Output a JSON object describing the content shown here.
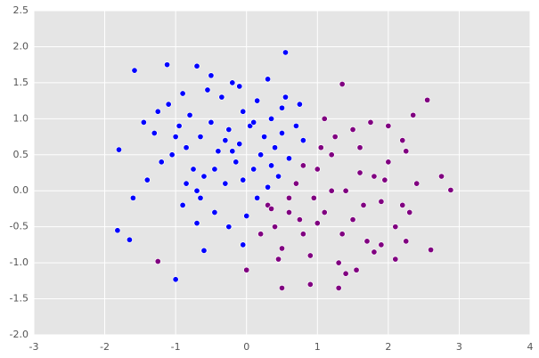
{
  "chart_data": {
    "type": "scatter",
    "xlim": [
      -3,
      4
    ],
    "xticks": [
      -3,
      -2,
      -1,
      0,
      1,
      2,
      3,
      4
    ],
    "ylim": [
      -2,
      2.5
    ],
    "yticks": [
      {
        "value": -2,
        "label": "-2.0"
      },
      -1.5,
      {
        "value": -1,
        "label": "-1.0"
      },
      -0.5,
      {
        "value": 0,
        "label": "0.0"
      },
      0.5,
      {
        "value": 1,
        "label": "1.0"
      },
      1.5,
      {
        "value": 2,
        "label": "2.0"
      },
      2.5
    ],
    "grid": true,
    "series": [
      {
        "color": "#0000ff",
        "x": [
          -1.8,
          -1.82,
          -1.65,
          -1.58,
          -1.12,
          -1.0,
          -0.7,
          0.55,
          -0.6,
          -0.05,
          -1.6,
          -1.4,
          -1.3,
          -1.2,
          -1.1,
          -0.95,
          -0.9,
          -0.85,
          -0.8,
          -0.75,
          -0.7,
          -0.65,
          -0.6,
          -0.55,
          -0.5,
          -0.45,
          -0.4,
          -0.35,
          -0.3,
          -0.25,
          -0.2,
          -0.15,
          -0.1,
          -0.05,
          0.0,
          0.05,
          0.1,
          0.15,
          0.2,
          0.25,
          0.3,
          0.35,
          0.4,
          0.45,
          0.5,
          0.6,
          0.7,
          0.8,
          -1.45,
          -1.25,
          -1.05,
          -0.85,
          -0.65,
          -0.45,
          -0.25,
          -0.05,
          0.15,
          0.35,
          0.55,
          0.75,
          -0.9,
          -0.5,
          -0.1,
          0.3,
          -0.7,
          -0.3,
          0.1,
          0.5,
          -1.0,
          -0.2
        ],
        "values": [
          0.57,
          -0.55,
          -0.68,
          1.67,
          1.75,
          -1.23,
          1.73,
          1.92,
          -0.83,
          -0.75,
          -0.1,
          0.15,
          0.8,
          0.4,
          1.2,
          0.9,
          -0.2,
          0.6,
          1.05,
          0.3,
          -0.45,
          0.75,
          0.2,
          1.4,
          0.95,
          -0.3,
          0.55,
          1.3,
          0.1,
          0.85,
          1.5,
          0.4,
          0.65,
          1.1,
          -0.35,
          0.9,
          0.3,
          1.25,
          0.5,
          0.75,
          0.05,
          1.0,
          0.6,
          0.2,
          0.8,
          0.45,
          0.9,
          0.7,
          0.95,
          1.1,
          0.5,
          0.1,
          -0.1,
          0.3,
          -0.5,
          0.15,
          -0.1,
          0.35,
          1.3,
          1.2,
          1.35,
          1.6,
          1.45,
          1.55,
          0.0,
          0.7,
          0.95,
          1.15,
          0.75,
          0.55
        ]
      },
      {
        "color": "#800080",
        "x": [
          2.88,
          2.6,
          2.55,
          -1.25,
          0.0,
          0.5,
          1.35,
          2.35,
          2.25,
          1.3,
          0.9,
          2.75,
          0.3,
          0.4,
          0.5,
          0.6,
          0.7,
          0.8,
          0.9,
          1.0,
          1.1,
          1.2,
          1.3,
          1.4,
          1.5,
          1.6,
          1.7,
          1.8,
          1.9,
          2.0,
          2.1,
          2.2,
          2.3,
          2.4,
          0.6,
          0.8,
          1.0,
          1.2,
          1.4,
          1.6,
          1.8,
          2.0,
          2.2,
          0.45,
          0.75,
          1.05,
          1.35,
          1.65,
          1.95,
          2.25,
          1.1,
          1.5,
          1.9,
          0.95,
          1.75,
          2.1,
          0.2,
          0.35,
          1.25,
          1.55
        ],
        "values": [
          0.01,
          -0.82,
          1.26,
          -0.98,
          -1.1,
          -1.35,
          1.48,
          1.05,
          -0.7,
          -1.35,
          -1.3,
          0.2,
          -0.2,
          -0.5,
          -0.8,
          -0.1,
          0.1,
          -0.6,
          -0.9,
          0.3,
          -0.3,
          0.5,
          -1.0,
          0.0,
          -0.4,
          0.6,
          -0.7,
          0.2,
          -0.15,
          0.4,
          -0.5,
          0.7,
          -0.3,
          0.1,
          -0.3,
          0.35,
          -0.45,
          0.0,
          -1.15,
          0.25,
          -0.85,
          0.9,
          -0.2,
          -0.95,
          -0.4,
          0.6,
          -0.6,
          -0.2,
          0.15,
          0.55,
          1.0,
          0.85,
          -0.75,
          -0.1,
          0.95,
          -0.95,
          -0.6,
          -0.25,
          0.75,
          -1.1
        ]
      }
    ]
  }
}
